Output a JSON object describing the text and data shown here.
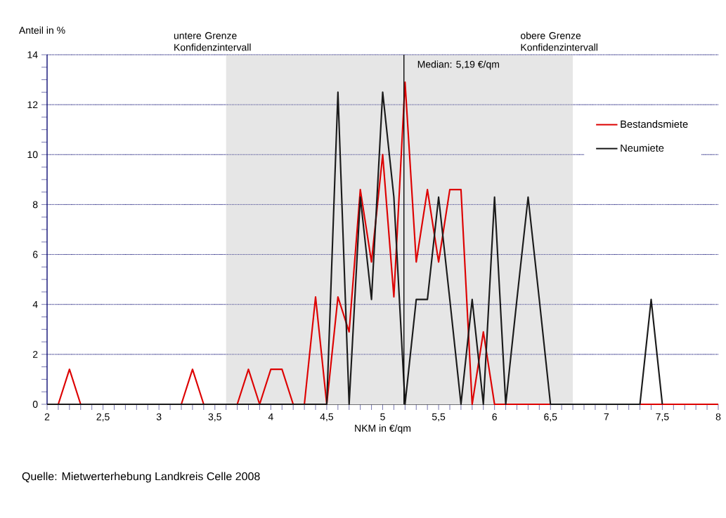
{
  "chart_data": {
    "type": "line",
    "xlabel": "NKM in €/qm",
    "ylabel": "Anteil in %",
    "x": [
      2.0,
      2.1,
      2.2,
      2.3,
      2.4,
      2.5,
      2.6,
      2.7,
      2.8,
      2.9,
      3.0,
      3.1,
      3.2,
      3.3,
      3.4,
      3.5,
      3.6,
      3.7,
      3.8,
      3.9,
      4.0,
      4.1,
      4.2,
      4.3,
      4.4,
      4.5,
      4.6,
      4.7,
      4.8,
      4.9,
      5.0,
      5.1,
      5.2,
      5.3,
      5.4,
      5.5,
      5.6,
      5.7,
      5.8,
      5.9,
      6.0,
      6.1,
      6.2,
      6.3,
      6.4,
      6.5,
      6.6,
      6.7,
      6.8,
      6.9,
      7.0,
      7.1,
      7.2,
      7.3,
      7.4,
      7.5,
      7.6,
      7.7,
      7.8,
      7.9,
      8.0
    ],
    "series": [
      {
        "name": "Bestandsmiete",
        "color": "#dd0000",
        "values": [
          0,
          0,
          1.4,
          0,
          0,
          0,
          0,
          0,
          0,
          0,
          0,
          0,
          0,
          1.4,
          0,
          0,
          0,
          0,
          1.4,
          0,
          1.4,
          1.4,
          0,
          0,
          4.3,
          0,
          4.3,
          2.9,
          8.6,
          5.7,
          10,
          4.3,
          12.9,
          5.7,
          8.6,
          5.7,
          8.6,
          8.6,
          0,
          2.9,
          0,
          0,
          0,
          0,
          0,
          0,
          0,
          0,
          0,
          0,
          0,
          0,
          0,
          0,
          0,
          0,
          0,
          0,
          0,
          0,
          0
        ]
      },
      {
        "name": "Neumiete",
        "color": "#1a1a1a",
        "values": [
          0,
          0,
          0,
          0,
          0,
          0,
          0,
          0,
          0,
          0,
          0,
          0,
          0,
          0,
          0,
          0,
          0,
          0,
          0,
          0,
          0,
          0,
          0,
          0,
          0,
          0,
          12.5,
          0,
          8.3,
          4.2,
          12.5,
          8.3,
          0,
          4.2,
          4.2,
          8.3,
          4.2,
          0,
          4.2,
          0,
          8.3,
          0,
          4.2,
          8.3,
          4.2,
          0,
          0,
          0,
          0,
          0,
          0,
          0,
          0,
          0,
          4.2,
          0,
          null,
          null,
          null,
          null,
          null
        ]
      }
    ],
    "xlim": [
      2,
      8
    ],
    "ylim": [
      0,
      14
    ],
    "xticks": [
      2,
      {
        "value": 2.5,
        "label": "2,5"
      },
      3,
      {
        "value": 3.5,
        "label": "3,5"
      },
      4,
      {
        "value": 4.5,
        "label": "4,5"
      },
      5,
      {
        "value": 5.5,
        "label": "5,5"
      },
      6,
      {
        "value": 6.5,
        "label": "6,5"
      },
      7,
      {
        "value": 7.5,
        "label": "7,5"
      },
      8
    ],
    "yticks": [
      0,
      2,
      4,
      6,
      8,
      10,
      12,
      14
    ],
    "grid": "y",
    "legend": "top right",
    "marker": "none",
    "line_style": "solid",
    "ref_lines": [
      {
        "axis": "x",
        "value": 5.19,
        "label": "Median: 5,19 €/qm",
        "color": "#000000"
      }
    ],
    "bands": [
      {
        "axis": "x",
        "from": 3.6,
        "to": 6.7,
        "color": "#e6e6e6"
      }
    ],
    "annotations": [
      {
        "text": "untere Grenze Konfidenzintervall",
        "x": 3.6,
        "y": 14
      },
      {
        "text": "obere Grenze Konfidenzintervall",
        "x": 6.7,
        "y": 14
      },
      "Quelle: Mietwerterhebung Landkreis Celle 2008"
    ]
  }
}
